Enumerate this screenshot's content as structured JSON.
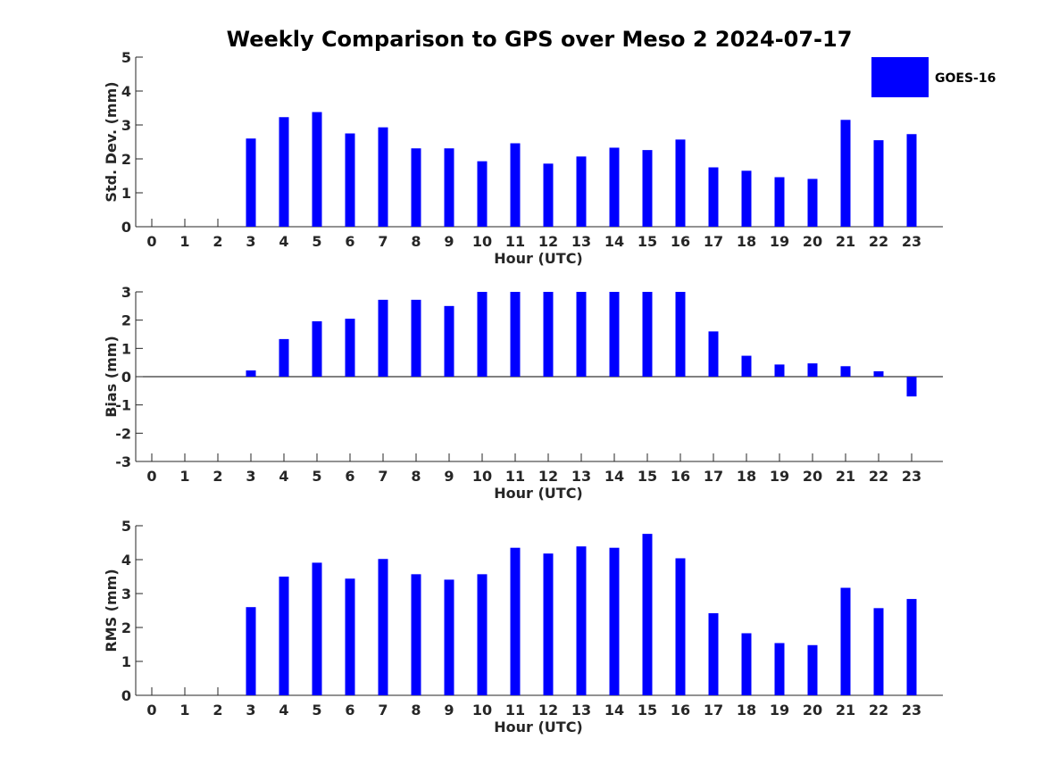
{
  "chart_data": {
    "title": "Weekly Comparison to GPS over Meso 2 2024-07-17",
    "type": "bar",
    "legend": {
      "placement": "top-right",
      "entries": [
        {
          "name": "GOES-16",
          "color": "#0000ff"
        }
      ]
    },
    "bar_color": "#0000ff",
    "categories": [
      "0",
      "1",
      "2",
      "3",
      "4",
      "5",
      "6",
      "7",
      "8",
      "9",
      "10",
      "11",
      "12",
      "13",
      "14",
      "15",
      "16",
      "17",
      "18",
      "19",
      "20",
      "21",
      "22",
      "23"
    ],
    "panels": [
      {
        "xlabel": "Hour (UTC)",
        "ylabel": "Std. Dev. (mm)",
        "ylim": [
          0,
          5
        ],
        "yticks": [
          "0",
          "1",
          "2",
          "3",
          "4",
          "5"
        ],
        "series": [
          {
            "name": "GOES-16",
            "values": [
              0,
              0,
              0,
              2.6,
              3.23,
              3.38,
              2.75,
              2.93,
              2.31,
              2.31,
              1.93,
              2.46,
              1.86,
              2.07,
              2.33,
              2.26,
              2.57,
              1.75,
              1.65,
              1.46,
              1.41,
              3.15,
              2.55,
              2.73
            ]
          }
        ]
      },
      {
        "xlabel": "Hour (UTC)",
        "ylabel": "Bias (mm)",
        "ylim": [
          -3,
          3
        ],
        "yticks": [
          "-3",
          "-2",
          "-1",
          "0",
          "1",
          "2",
          "3"
        ],
        "series": [
          {
            "name": "GOES-16",
            "values": [
              0,
              0,
              0,
              0.22,
              1.33,
              1.96,
              2.05,
              2.72,
              2.72,
              2.5,
              3,
              3,
              3,
              3,
              3,
              3,
              3,
              1.6,
              0.74,
              0.43,
              0.47,
              0.37,
              0.19,
              -0.7
            ]
          }
        ]
      },
      {
        "xlabel": "Hour (UTC)",
        "ylabel": "RMS (mm)",
        "ylim": [
          0,
          5
        ],
        "yticks": [
          "0",
          "1",
          "2",
          "3",
          "4",
          "5"
        ],
        "series": [
          {
            "name": "GOES-16",
            "values": [
              0,
              0,
              0,
              2.6,
              3.5,
              3.91,
              3.44,
              4.02,
              3.57,
              3.41,
              3.57,
              4.35,
              4.18,
              4.39,
              4.35,
              4.76,
              4.04,
              2.42,
              1.83,
              1.54,
              1.48,
              3.17,
              2.57,
              2.84
            ]
          }
        ]
      }
    ]
  }
}
